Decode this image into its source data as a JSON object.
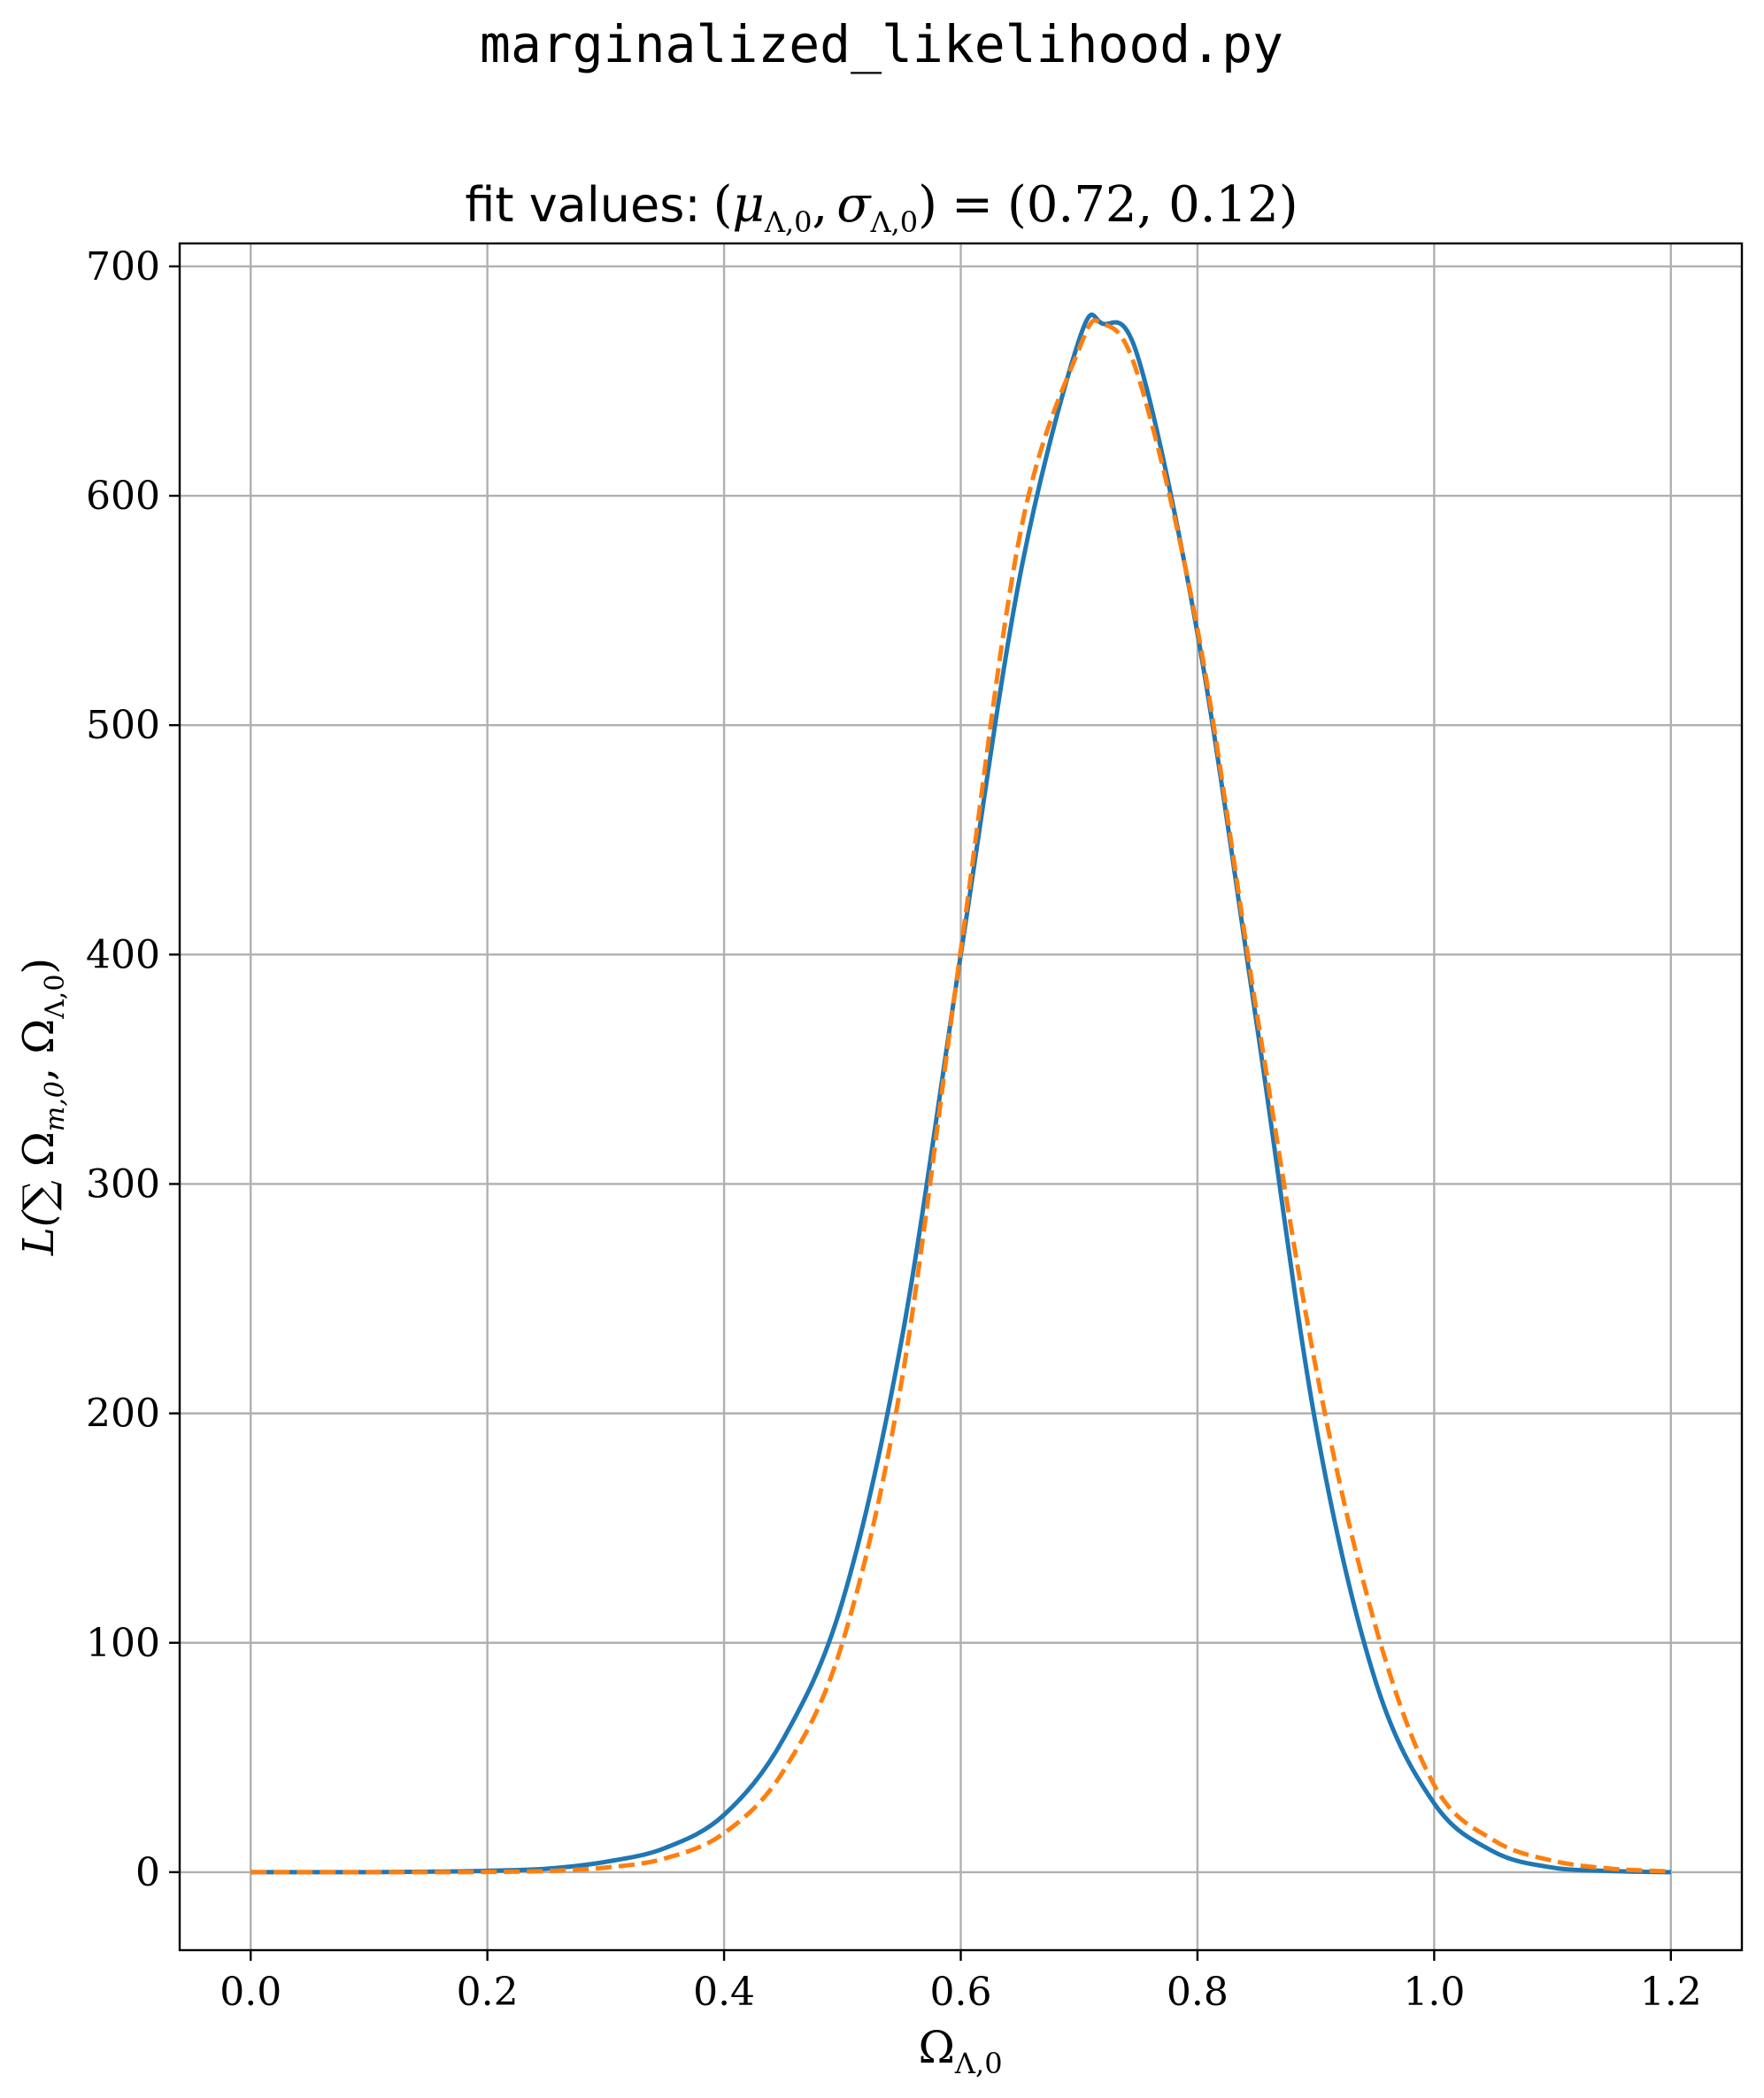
{
  "figure": {
    "suptitle": "marginalized_likelihood.py"
  },
  "chart_data": {
    "type": "line",
    "title_prefix": "fit values:",
    "title_math": {
      "lparen": "(",
      "mu": "μ",
      "sigma": "σ",
      "subscript": "Λ,0",
      "comma": ",",
      "rparen": ")",
      "equals": "=",
      "values_text": "(0.72, 0.12)"
    },
    "fit": {
      "mu": 0.72,
      "sigma": 0.12
    },
    "xlabel": {
      "base": "Ω",
      "subscript": "Λ,0"
    },
    "ylabel": {
      "prefix": "L(∑ ",
      "omega1": "Ω",
      "sub1": "m,0",
      "comma": ", ",
      "omega2": "Ω",
      "sub2": "Λ,0",
      "suffix": ")"
    },
    "xlim": [
      -0.06,
      1.26
    ],
    "ylim": [
      -34,
      710
    ],
    "xticks": [
      {
        "value": 0.0,
        "label": "0.0"
      },
      {
        "value": 0.2,
        "label": "0.2"
      },
      {
        "value": 0.4,
        "label": "0.4"
      },
      {
        "value": 0.6,
        "label": "0.6"
      },
      {
        "value": 0.8,
        "label": "0.8"
      },
      {
        "value": 1.0,
        "label": "1.0"
      },
      {
        "value": 1.2,
        "label": "1.2"
      }
    ],
    "yticks": [
      {
        "value": 0,
        "label": "0"
      },
      {
        "value": 100,
        "label": "100"
      },
      {
        "value": 200,
        "label": "200"
      },
      {
        "value": 300,
        "label": "300"
      },
      {
        "value": 400,
        "label": "400"
      },
      {
        "value": 500,
        "label": "500"
      },
      {
        "value": 600,
        "label": "600"
      },
      {
        "value": 700,
        "label": "700"
      }
    ],
    "grid": true,
    "series": [
      {
        "style": "solid",
        "color": "#1f77b4",
        "x": [
          0.0,
          0.05,
          0.1,
          0.15,
          0.2,
          0.25,
          0.3,
          0.35,
          0.4,
          0.45,
          0.5,
          0.55,
          0.6,
          0.65,
          0.7,
          0.72,
          0.75,
          0.8,
          0.85,
          0.9,
          0.95,
          1.0,
          1.05,
          1.1,
          1.15,
          1.2
        ],
        "y": [
          0,
          0,
          0,
          0.2,
          0.6,
          1.5,
          4.5,
          10.5,
          25,
          58,
          118,
          232,
          400,
          565,
          668,
          675,
          660,
          540,
          370,
          195,
          84,
          30,
          9,
          2,
          0.5,
          0
        ]
      },
      {
        "style": "dashed",
        "color": "#ff7f0e",
        "x": [
          0.0,
          0.05,
          0.1,
          0.15,
          0.2,
          0.25,
          0.3,
          0.35,
          0.4,
          0.45,
          0.5,
          0.55,
          0.6,
          0.65,
          0.7,
          0.72,
          0.75,
          0.8,
          0.85,
          0.9,
          0.95,
          1.0,
          1.05,
          1.1,
          1.15,
          1.2
        ],
        "y": [
          0,
          0,
          0,
          0,
          0.1,
          0.5,
          2,
          6,
          17,
          44,
          100,
          214,
          402,
          583,
          664,
          675,
          652,
          542,
          375,
          220,
          108,
          38,
          14,
          5,
          1.5,
          0.3
        ]
      }
    ]
  },
  "colors": {
    "series_blue": "#1f77b4",
    "series_orange": "#ff7f0e",
    "grid": "#b0b0b0"
  }
}
